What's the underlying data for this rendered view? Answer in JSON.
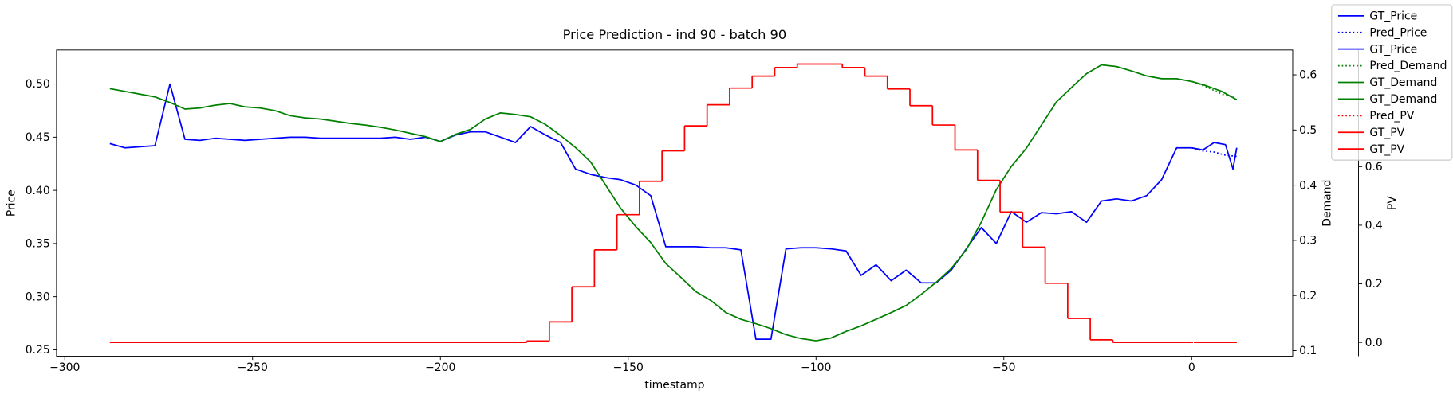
{
  "chart_data": {
    "type": "line",
    "title": "Price Prediction - ind 90 - batch 90",
    "xlabel": "timestamp",
    "ylabel": "Price",
    "ylabel_color": "#0000ff",
    "y2label": "Demand",
    "y2label_color": "#008000",
    "y3label": "PV",
    "y3label_color": "#ff0000",
    "xlim": [
      -302.2,
      26.9
    ],
    "xticks": [
      {
        "value": -300,
        "label": "−300"
      },
      {
        "value": -250,
        "label": "−250"
      },
      {
        "value": -200,
        "label": "−200"
      },
      {
        "value": -150,
        "label": "−150"
      },
      {
        "value": -100,
        "label": "−100"
      },
      {
        "value": -50,
        "label": "−50"
      },
      0
    ],
    "ylim": [
      0.244,
      0.532
    ],
    "yticks": [
      {
        "value": 0.25,
        "label": "0.25"
      },
      {
        "value": 0.3,
        "label": "0.30"
      },
      {
        "value": 0.35,
        "label": "0.35"
      },
      {
        "value": 0.4,
        "label": "0.40"
      },
      {
        "value": 0.45,
        "label": "0.45"
      },
      {
        "value": 0.5,
        "label": "0.50"
      }
    ],
    "y2lim": [
      0.09,
      0.645
    ],
    "y2ticks": [
      0.1,
      0.2,
      0.3,
      0.4,
      0.5,
      0.6
    ],
    "y3lim": [
      -0.047,
      0.998
    ],
    "y3ticks": [
      {
        "value": 0,
        "label": "0.0"
      },
      0.2,
      0.4,
      0.6
    ],
    "legend": "upper right",
    "series": [
      {
        "name": "GT_Price",
        "color": "#0000ff",
        "linestyle": "solid",
        "axis": "y",
        "x": [
          -288,
          -284,
          -280,
          -276,
          -272,
          -268,
          -264,
          -260,
          -256,
          -252,
          -248,
          -244,
          -240,
          -236,
          -232,
          -228,
          -224,
          -220,
          -216,
          -212,
          -208,
          -204,
          -200,
          -196,
          -192,
          -188,
          -184,
          -180,
          -176,
          -172,
          -168,
          -164,
          -160,
          -156,
          -152,
          -148,
          -144,
          -140,
          -136,
          -132,
          -128,
          -124,
          -120,
          -116,
          -112,
          -108,
          -104,
          -100,
          -96,
          -92,
          -88,
          -84,
          -80,
          -76,
          -72,
          -68,
          -64,
          -60,
          -56,
          -52,
          -48,
          -44,
          -40,
          -36,
          -32,
          -28,
          -24,
          -20,
          -16,
          -12,
          -8,
          -4,
          0
        ],
        "values": [
          0.444,
          0.44,
          0.441,
          0.442,
          0.5,
          0.448,
          0.447,
          0.449,
          0.448,
          0.447,
          0.448,
          0.449,
          0.45,
          0.45,
          0.449,
          0.449,
          0.449,
          0.449,
          0.449,
          0.45,
          0.448,
          0.45,
          0.446,
          0.452,
          0.455,
          0.455,
          0.45,
          0.445,
          0.46,
          0.452,
          0.445,
          0.42,
          0.415,
          0.412,
          0.41,
          0.405,
          0.395,
          0.347,
          0.347,
          0.347,
          0.346,
          0.346,
          0.344,
          0.26,
          0.26,
          0.345,
          0.346,
          0.346,
          0.345,
          0.343,
          0.32,
          0.33,
          0.315,
          0.325,
          0.313,
          0.313,
          0.325,
          0.345,
          0.365,
          0.35,
          0.38,
          0.37,
          0.379,
          0.378,
          0.38,
          0.37,
          0.39,
          0.392,
          0.39,
          0.395,
          0.41,
          0.44,
          0.44
        ]
      },
      {
        "name": "Pred_Price",
        "color": "#0000ff",
        "linestyle": "dotted",
        "axis": "y",
        "x": [
          0,
          3,
          6,
          9,
          12
        ],
        "values": [
          0.44,
          0.437,
          0.436,
          0.433,
          0.432
        ]
      },
      {
        "name": "GT_Price",
        "color": "#0000ff",
        "linestyle": "solid",
        "axis": "y",
        "x": [
          0,
          3,
          6,
          9,
          11,
          12
        ],
        "values": [
          0.44,
          0.438,
          0.445,
          0.443,
          0.42,
          0.44
        ]
      },
      {
        "name": "Pred_Demand",
        "color": "#008000",
        "linestyle": "dotted",
        "axis": "y2",
        "x": [
          0,
          4,
          8,
          12
        ],
        "values": [
          0.588,
          0.578,
          0.565,
          0.558
        ]
      },
      {
        "name": "GT_Demand",
        "color": "#008000",
        "linestyle": "solid",
        "axis": "y2",
        "x": [
          -288,
          -284,
          -280,
          -276,
          -272,
          -268,
          -264,
          -260,
          -256,
          -252,
          -248,
          -244,
          -240,
          -236,
          -232,
          -228,
          -224,
          -220,
          -216,
          -212,
          -208,
          -204,
          -200,
          -196,
          -192,
          -188,
          -184,
          -180,
          -176,
          -172,
          -168,
          -164,
          -160,
          -156,
          -152,
          -148,
          -144,
          -140,
          -136,
          -132,
          -128,
          -124,
          -120,
          -116,
          -112,
          -108,
          -104,
          -100,
          -96,
          -92,
          -88,
          -84,
          -80,
          -76,
          -72,
          -68,
          -64,
          -60,
          -56,
          -52,
          -48,
          -44,
          -40,
          -36,
          -32,
          -28,
          -24,
          -20,
          -16,
          -12,
          -8,
          -4,
          0
        ],
        "values": [
          0.575,
          0.57,
          0.565,
          0.56,
          0.55,
          0.538,
          0.54,
          0.545,
          0.548,
          0.542,
          0.54,
          0.535,
          0.526,
          0.522,
          0.52,
          0.516,
          0.512,
          0.509,
          0.505,
          0.5,
          0.494,
          0.488,
          0.479,
          0.492,
          0.501,
          0.52,
          0.531,
          0.528,
          0.524,
          0.51,
          0.49,
          0.468,
          0.442,
          0.4,
          0.358,
          0.325,
          0.296,
          0.258,
          0.233,
          0.207,
          0.191,
          0.169,
          0.157,
          0.149,
          0.14,
          0.129,
          0.122,
          0.118,
          0.123,
          0.135,
          0.145,
          0.157,
          0.169,
          0.182,
          0.202,
          0.224,
          0.249,
          0.283,
          0.333,
          0.392,
          0.434,
          0.467,
          0.509,
          0.551,
          0.577,
          0.602,
          0.618,
          0.615,
          0.607,
          0.598,
          0.593,
          0.593,
          0.588
        ]
      },
      {
        "name": "GT_Demand",
        "color": "#008000",
        "linestyle": "solid",
        "axis": "y2",
        "x": [
          0,
          4,
          8,
          12
        ],
        "values": [
          0.588,
          0.58,
          0.57,
          0.555
        ]
      },
      {
        "name": "Pred_PV",
        "color": "#ff0000",
        "linestyle": "dotted",
        "axis": "y3",
        "x": [
          0,
          12
        ],
        "values": [
          0,
          0
        ]
      },
      {
        "name": "GT_PV",
        "color": "#ff0000",
        "linestyle": "solid",
        "axis": "y3",
        "drawstyle": "steps-post",
        "x": [
          -288,
          -177,
          -171,
          -165,
          -159,
          -153,
          -147,
          -141,
          -135,
          -129,
          -123,
          -117,
          -111,
          -105,
          -93,
          -87,
          -81,
          -75,
          -69,
          -63,
          -57,
          -51,
          -45,
          -39,
          -33,
          -27,
          -21,
          0
        ],
        "values": [
          0,
          0.005,
          0.07,
          0.19,
          0.316,
          0.436,
          0.55,
          0.654,
          0.739,
          0.811,
          0.868,
          0.909,
          0.938,
          0.95,
          0.938,
          0.909,
          0.865,
          0.808,
          0.742,
          0.657,
          0.553,
          0.445,
          0.325,
          0.202,
          0.082,
          0.009,
          0,
          0
        ]
      },
      {
        "name": "GT_PV",
        "color": "#ff0000",
        "linestyle": "solid",
        "axis": "y3",
        "x": [
          0.6,
          12
        ],
        "values": [
          0,
          0
        ]
      }
    ]
  }
}
